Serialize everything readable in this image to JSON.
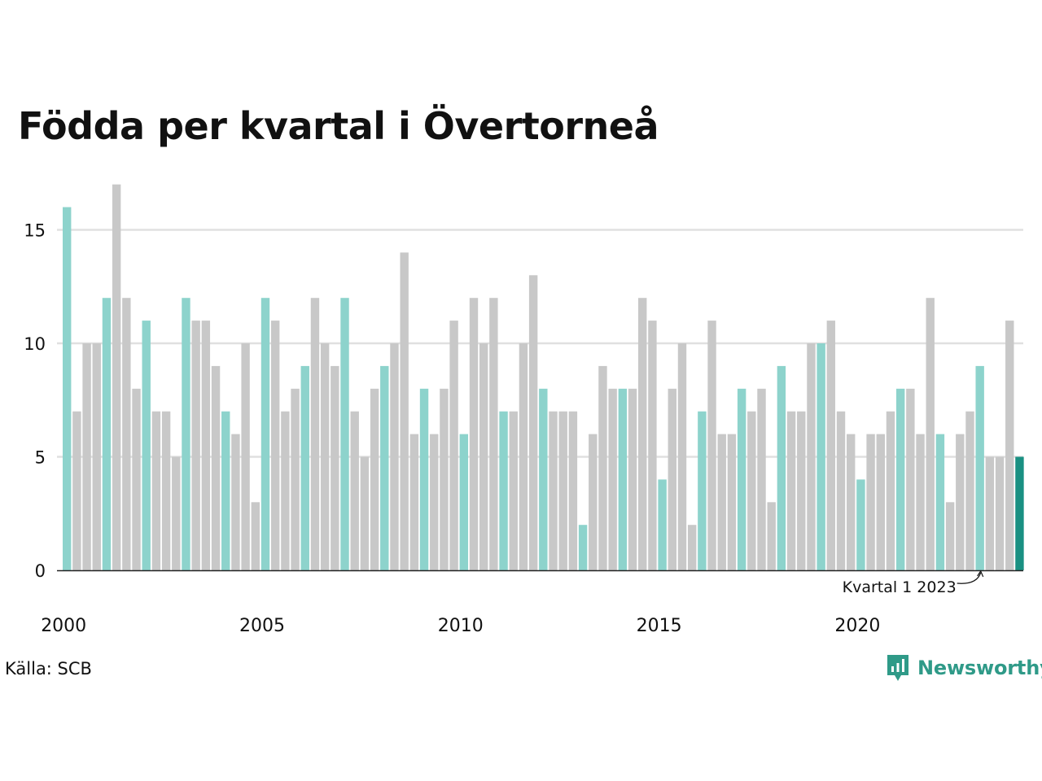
{
  "title": "Födda per kvartal i Övertorneå",
  "source": "Källa: SCB",
  "brand": "Newsworthy",
  "colors": {
    "highlight": "#8dd3cc",
    "other": "#c8c8c8",
    "latest": "#1a9082",
    "grid": "#e0e0e0",
    "axis": "#222222",
    "brand": "#2f9a88"
  },
  "chart_data": {
    "type": "bar",
    "title": "Födda per kvartal i Övertorneå",
    "xlabel": "",
    "ylabel": "",
    "ylim": [
      0,
      17
    ],
    "yticks": [
      0,
      5,
      10,
      15
    ],
    "xtick_labels": [
      "2000",
      "2005",
      "2010",
      "2015",
      "2020"
    ],
    "grid": "horizontal",
    "annotation": "Kvartal 1 2023",
    "highlight_rule": "Kvartal 1 of each year in light teal, latest quarter in dark teal",
    "categories": [
      "2000 Q1",
      "2000 Q2",
      "2000 Q3",
      "2000 Q4",
      "2001 Q1",
      "2001 Q2",
      "2001 Q3",
      "2001 Q4",
      "2002 Q1",
      "2002 Q2",
      "2002 Q3",
      "2002 Q4",
      "2003 Q1",
      "2003 Q2",
      "2003 Q3",
      "2003 Q4",
      "2004 Q1",
      "2004 Q2",
      "2004 Q3",
      "2004 Q4",
      "2005 Q1",
      "2005 Q2",
      "2005 Q3",
      "2005 Q4",
      "2006 Q1",
      "2006 Q2",
      "2006 Q3",
      "2006 Q4",
      "2007 Q1",
      "2007 Q2",
      "2007 Q3",
      "2007 Q4",
      "2008 Q1",
      "2008 Q2",
      "2008 Q3",
      "2008 Q4",
      "2009 Q1",
      "2009 Q2",
      "2009 Q3",
      "2009 Q4",
      "2010 Q1",
      "2010 Q2",
      "2010 Q3",
      "2010 Q4",
      "2011 Q1",
      "2011 Q2",
      "2011 Q3",
      "2011 Q4",
      "2012 Q1",
      "2012 Q2",
      "2012 Q3",
      "2012 Q4",
      "2013 Q1",
      "2013 Q2",
      "2013 Q3",
      "2013 Q4",
      "2014 Q1",
      "2014 Q2",
      "2014 Q3",
      "2014 Q4",
      "2015 Q1",
      "2015 Q2",
      "2015 Q3",
      "2015 Q4",
      "2016 Q1",
      "2016 Q2",
      "2016 Q3",
      "2016 Q4",
      "2017 Q1",
      "2017 Q2",
      "2017 Q3",
      "2017 Q4",
      "2018 Q1",
      "2018 Q2",
      "2018 Q3",
      "2018 Q4",
      "2019 Q1",
      "2019 Q2",
      "2019 Q3",
      "2019 Q4",
      "2020 Q1",
      "2020 Q2",
      "2020 Q3",
      "2020 Q4",
      "2021 Q1",
      "2021 Q2",
      "2021 Q3",
      "2021 Q4",
      "2022 Q1",
      "2022 Q2",
      "2022 Q3",
      "2022 Q4",
      "2023 Q1",
      "2023 Q2",
      "2023 Q3",
      "2023 Q4",
      "2024 Q1"
    ],
    "values": [
      16,
      7,
      10,
      10,
      12,
      17,
      12,
      8,
      11,
      7,
      7,
      5,
      12,
      11,
      11,
      9,
      7,
      6,
      10,
      3,
      12,
      11,
      7,
      8,
      9,
      12,
      10,
      9,
      12,
      7,
      5,
      8,
      9,
      10,
      14,
      6,
      8,
      6,
      8,
      11,
      6,
      12,
      10,
      12,
      7,
      7,
      10,
      13,
      8,
      7,
      7,
      7,
      2,
      6,
      9,
      8,
      8,
      8,
      12,
      11,
      4,
      8,
      10,
      2,
      7,
      11,
      6,
      6,
      8,
      7,
      8,
      3,
      9,
      7,
      7,
      10,
      10,
      11,
      7,
      6,
      4,
      6,
      6,
      7,
      8,
      8,
      6,
      12,
      6,
      3,
      6,
      7,
      9,
      5,
      5,
      11,
      5
    ]
  }
}
